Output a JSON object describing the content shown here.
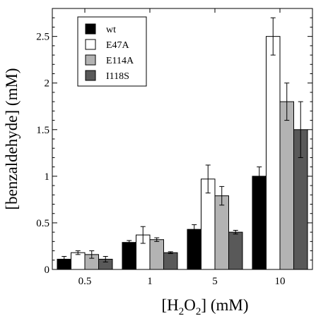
{
  "chart_data": {
    "type": "bar",
    "title": "",
    "xlabel": {
      "base": "[H",
      "sub1": "2",
      "mid": "O",
      "sub2": "2",
      "tail": "] (mM)"
    },
    "ylabel": "[benzaldehyde] (mM)",
    "categories": [
      "0.5",
      "1",
      "5",
      "10"
    ],
    "ylim": [
      0,
      2.8
    ],
    "yticks": [
      0,
      0.5,
      1,
      1.5,
      2,
      2.5
    ],
    "ytick_labels": [
      "0",
      "0.5",
      "1",
      "1.5",
      "2",
      "2.5"
    ],
    "legend_position": "top-left",
    "grid": false,
    "series": [
      {
        "name": "wt",
        "color": "#000000",
        "values": [
          0.11,
          0.29,
          0.43,
          1.0
        ],
        "errors": [
          0.03,
          0.02,
          0.05,
          0.1
        ]
      },
      {
        "name": "E47A",
        "color": "#ffffff",
        "values": [
          0.18,
          0.37,
          0.97,
          2.5
        ],
        "errors": [
          0.02,
          0.09,
          0.15,
          0.2
        ]
      },
      {
        "name": "E114A",
        "color": "#b3b3b3",
        "values": [
          0.16,
          0.32,
          0.79,
          1.8
        ],
        "errors": [
          0.04,
          0.02,
          0.1,
          0.2
        ]
      },
      {
        "name": "I118S",
        "color": "#595959",
        "values": [
          0.11,
          0.18,
          0.4,
          1.5
        ],
        "errors": [
          0.03,
          0.01,
          0.02,
          0.3
        ]
      }
    ]
  }
}
